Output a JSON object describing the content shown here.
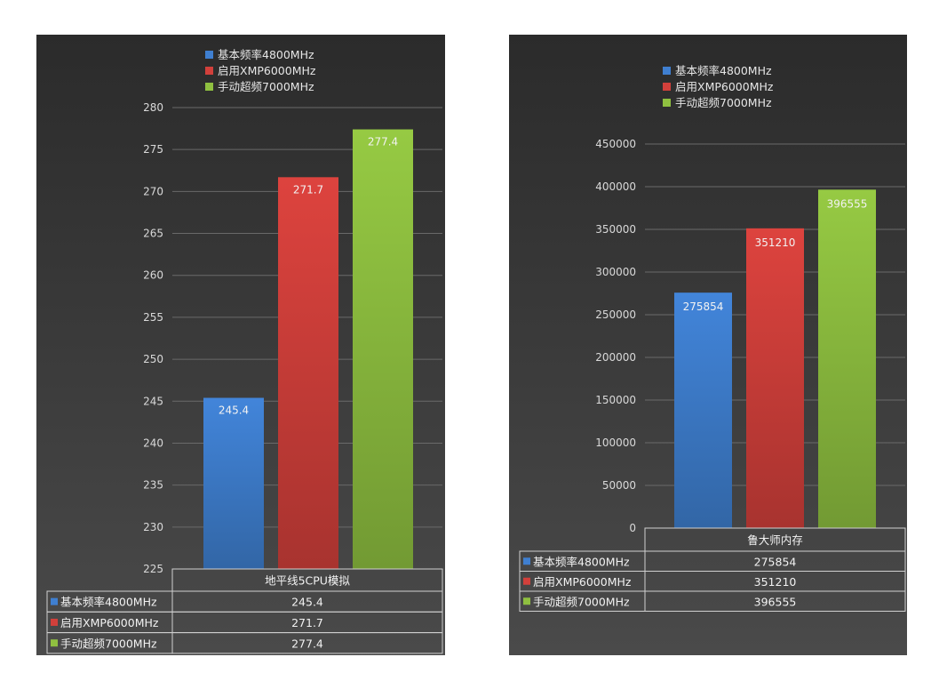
{
  "chart_data": [
    {
      "type": "bar",
      "categories": [
        "地平线5CPU模拟"
      ],
      "series": [
        {
          "name": "基本频率4800MHz",
          "values": [
            245.4
          ],
          "color": "#3f7fd0"
        },
        {
          "name": "启用XMP6000MHz",
          "values": [
            271.7
          ],
          "color": "#d2403b"
        },
        {
          "name": "手动超频7000MHz",
          "values": [
            277.4
          ],
          "color": "#8fc040"
        }
      ],
      "ylim": [
        225,
        280
      ],
      "yticks": [
        "225",
        "230",
        "235",
        "240",
        "245",
        "250",
        "255",
        "260",
        "265",
        "270",
        "275",
        "280"
      ],
      "data_labels": [
        "245.4",
        "271.7",
        "277.4"
      ],
      "table_values": [
        "245.4",
        "271.7",
        "277.4"
      ],
      "legend_position": "top",
      "grid": true
    },
    {
      "type": "bar",
      "categories": [
        "鲁大师内存"
      ],
      "series": [
        {
          "name": "基本频率4800MHz",
          "values": [
            275854
          ],
          "color": "#3f7fd0"
        },
        {
          "name": "启用XMP6000MHz",
          "values": [
            351210
          ],
          "color": "#d2403b"
        },
        {
          "name": "手动超频7000MHz",
          "values": [
            396555
          ],
          "color": "#8fc040"
        }
      ],
      "ylim": [
        0,
        450000
      ],
      "yticks": [
        "0",
        "50000",
        "100000",
        "150000",
        "200000",
        "250000",
        "300000",
        "350000",
        "400000",
        "450000"
      ],
      "data_labels": [
        "275854",
        "351210",
        "396555"
      ],
      "table_values": [
        "275854",
        "351210",
        "396555"
      ],
      "legend_position": "top",
      "grid": true
    }
  ],
  "theme": {
    "background_top": "#2b2b2b",
    "background_bottom": "#4a4a4a",
    "grid_color": "#6a6a6a"
  }
}
